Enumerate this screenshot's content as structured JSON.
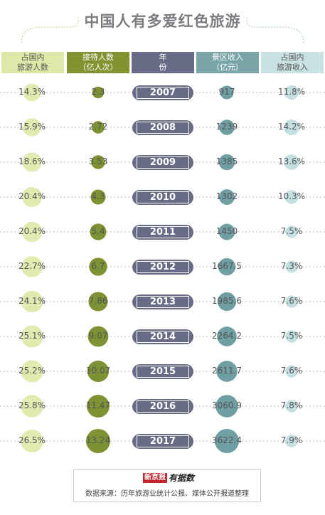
{
  "title": "中国人有多爱红色旅游",
  "colors": {
    "col1": "#dde9a8",
    "col2": "#849332",
    "col3": "#676b85",
    "col4": "#7aa5a8",
    "col5": "#c9e1e2",
    "dot1": "#e0ebb0",
    "dot2": "#7f9233",
    "dot4": "#6f9ea3",
    "dot5": "#c4dfe1",
    "deco_line": "#b7d07a",
    "deco_line_right": "#9fc6c6"
  },
  "headers": [
    {
      "line1": "占国内",
      "line2": "旅游人数"
    },
    {
      "line1": "接待人数",
      "line2": "（亿人次）"
    },
    {
      "line1": "年",
      "line2": "份"
    },
    {
      "line1": "景区收入",
      "line2": "（亿元）"
    },
    {
      "line1": "占国内",
      "line2": "旅游收入"
    }
  ],
  "chart_data": {
    "type": "table",
    "title": "中国人有多爱红色旅游",
    "columns": [
      "占国内旅游人数",
      "接待人数（亿人次）",
      "年份",
      "景区收入（亿元）",
      "占国内旅游收入"
    ],
    "years": [
      "2007",
      "2008",
      "2009",
      "2010",
      "2011",
      "2012",
      "2013",
      "2014",
      "2015",
      "2016",
      "2017"
    ],
    "share_tourists": [
      "14.3%",
      "15.9%",
      "18.6%",
      "20.4%",
      "20.4%",
      "22.7%",
      "24.1%",
      "25.1%",
      "25.2%",
      "25.8%",
      "26.5%"
    ],
    "share_tourists_values": [
      14.3,
      15.9,
      18.6,
      20.4,
      20.4,
      22.7,
      24.1,
      25.1,
      25.2,
      25.8,
      26.5
    ],
    "visitors": [
      "2.3",
      "2.72",
      "3.53",
      "4.3",
      "5.4",
      "6.7",
      "7.86",
      "9.07",
      "10.07",
      "11.47",
      "13.24"
    ],
    "visitors_values": [
      2.3,
      2.72,
      3.53,
      4.3,
      5.4,
      6.7,
      7.86,
      9.07,
      10.07,
      11.47,
      13.24
    ],
    "revenue": [
      "917",
      "1239",
      "1385",
      "1302",
      "1450",
      "1667.5",
      "1985.6",
      "2264.2",
      "2611.7",
      "3060.9",
      "3622.4"
    ],
    "revenue_values": [
      917,
      1239,
      1385,
      1302,
      1450,
      1667.5,
      1985.6,
      2264.2,
      2611.7,
      3060.9,
      3622.4
    ],
    "share_revenue": [
      "11.8%",
      "14.2%",
      "13.6%",
      "10.3%",
      "7.5%",
      "7.3%",
      "7.6%",
      "7.5%",
      "7.6%",
      "7.8%",
      "7.9%"
    ],
    "share_revenue_values": [
      11.8,
      14.2,
      13.6,
      10.3,
      7.5,
      7.3,
      7.6,
      7.5,
      7.6,
      7.8,
      7.9
    ]
  },
  "source": {
    "logo_part1": "新京报",
    "logo_part2": "有据数",
    "text": "数据来源：历年旅游业统计公报、媒体公开报道整理"
  }
}
